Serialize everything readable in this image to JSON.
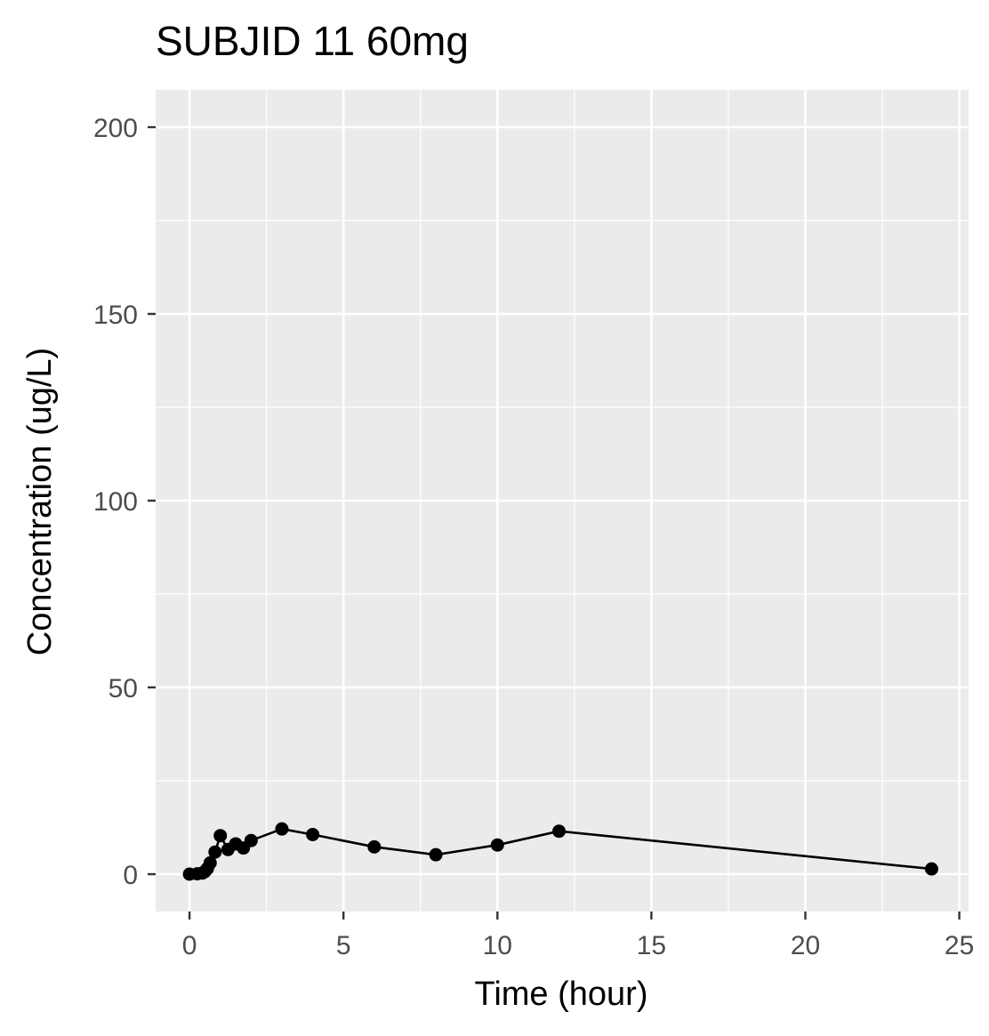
{
  "chart_data": {
    "type": "line",
    "title": "SUBJID 11 60mg",
    "xlabel": "Time (hour)",
    "ylabel": "Concentration (ug/L)",
    "xlim": [
      -1.1,
      25.3
    ],
    "ylim": [
      -10,
      210
    ],
    "x_ticks": [
      0,
      5,
      10,
      15,
      20,
      25
    ],
    "y_ticks": [
      0,
      50,
      100,
      150,
      200
    ],
    "grid": true,
    "legend": "none",
    "colors": {
      "panel": "#ebebeb",
      "grid": "#ffffff",
      "series": "#000000",
      "tick_text": "#4d4d4d"
    },
    "series": [
      {
        "x": [
          0,
          0.25,
          0.42,
          0.5,
          0.58,
          0.67,
          0.83,
          1.0,
          1.25,
          1.5,
          1.75,
          2.0,
          3.0,
          4.0,
          6.0,
          8.0,
          10.0,
          12.0,
          24.1
        ],
        "y": [
          0,
          0.1,
          0.3,
          0.7,
          1.5,
          3.0,
          5.9,
          10.3,
          6.6,
          8.1,
          7.0,
          9.0,
          12.1,
          10.6,
          7.3,
          5.2,
          7.8,
          11.5,
          1.4
        ]
      }
    ]
  }
}
